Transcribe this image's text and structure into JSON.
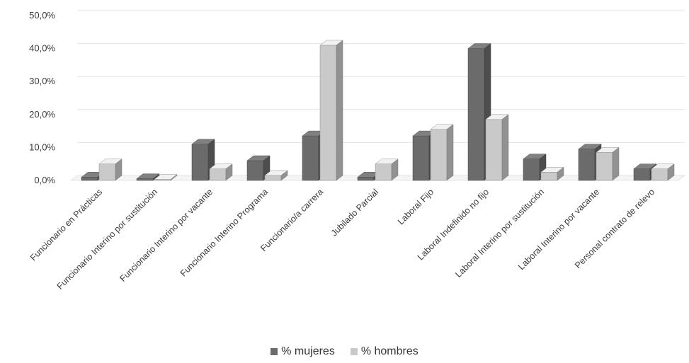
{
  "chart_data": {
    "type": "bar",
    "style": "3d-clustered-column",
    "categories": [
      "Funcionario en Prácticas",
      "Funcionario Interino por sustitución",
      "Funcionario Interino por vacante",
      "Funcionario Interino Programa",
      "Funcionario/a carrera",
      "Jubilado Parcial",
      "Laboral Fijo",
      "Laboral Indefinido no fijo",
      "Laboral Interino por sustitución",
      "Laboral Interino por vacante",
      "Personal contrato de relevo"
    ],
    "series": [
      {
        "name": "% mujeres",
        "color": "#6b6b6b",
        "values": [
          1.0,
          0.5,
          11.0,
          6.0,
          13.5,
          1.0,
          13.5,
          40.0,
          6.5,
          9.5,
          3.5
        ]
      },
      {
        "name": "% hombres",
        "color": "#c9c9c9",
        "values": [
          5.0,
          0.3,
          3.5,
          1.5,
          41.0,
          5.0,
          15.5,
          18.5,
          2.5,
          8.5,
          3.5
        ]
      }
    ],
    "yticks": [
      "0,0%",
      "10,0%",
      "20,0%",
      "30,0%",
      "40,0%",
      "50,0%"
    ],
    "ylim": [
      0,
      50
    ],
    "grid": true,
    "legend_position": "bottom"
  }
}
